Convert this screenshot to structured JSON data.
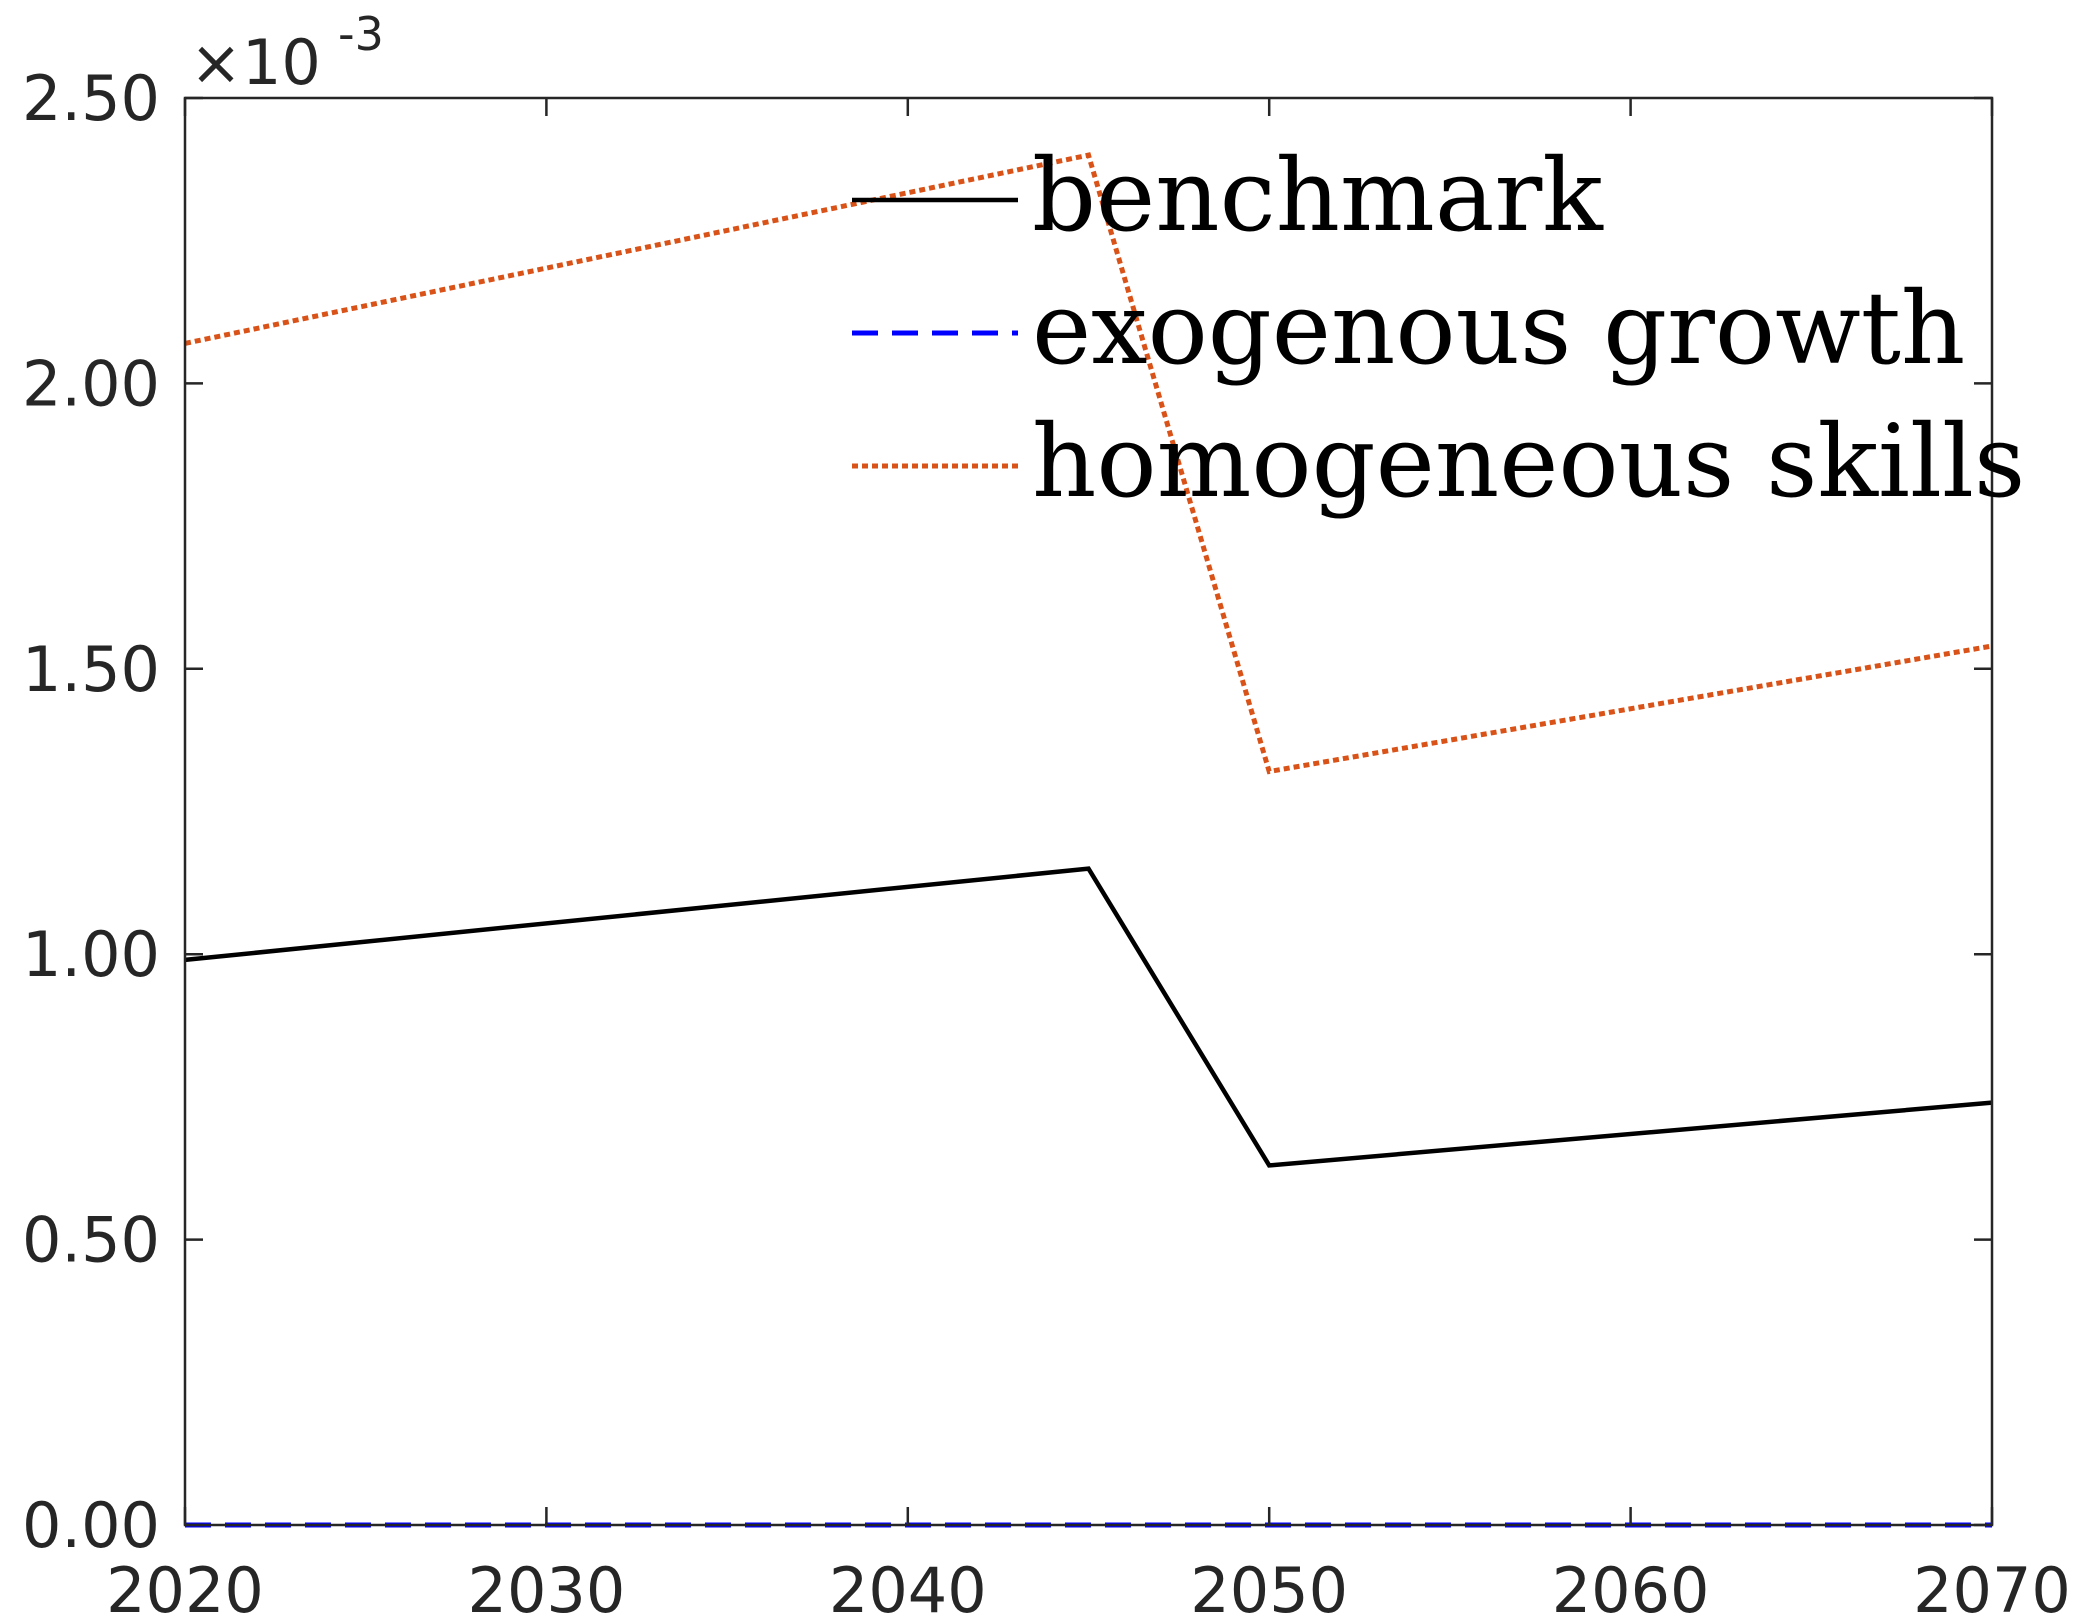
{
  "chart_data": {
    "type": "line",
    "title": "",
    "xlabel": "",
    "ylabel": "",
    "y_multiplier_label": "×10",
    "y_multiplier_exponent": "-3",
    "xlim": [
      2020,
      2070
    ],
    "ylim": [
      0,
      2.5
    ],
    "x_ticks": [
      2020,
      2030,
      2040,
      2050,
      2060,
      2070
    ],
    "x_tick_labels": [
      "2020",
      "2030",
      "2040",
      "2050",
      "2060",
      "2070"
    ],
    "y_ticks": [
      0,
      0.5,
      1.0,
      1.5,
      2.0,
      2.5
    ],
    "y_tick_labels": [
      "0.00",
      "0.50",
      "1.00",
      "1.50",
      "2.00",
      "2.50"
    ],
    "grid": false,
    "legend_position": "top-right",
    "series": [
      {
        "name": "benchmark",
        "color": "#000000",
        "style": "solid",
        "x": [
          2020,
          2045,
          2050,
          2070
        ],
        "y": [
          0.99,
          1.15,
          0.63,
          0.74
        ]
      },
      {
        "name": "exogenous growth",
        "color": "#0000ff",
        "style": "dashed",
        "x": [
          2020,
          2045,
          2050,
          2070
        ],
        "y": [
          0.0,
          0.0,
          0.0,
          0.0
        ]
      },
      {
        "name": "homogeneous skills",
        "color": "#d95319",
        "style": "dotted",
        "x": [
          2020,
          2045,
          2050,
          2070
        ],
        "y": [
          2.07,
          2.4,
          1.32,
          1.54
        ]
      }
    ]
  }
}
